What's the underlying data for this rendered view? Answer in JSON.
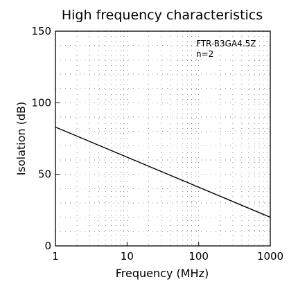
{
  "chart_data": {
    "type": "line",
    "title": "High frequency characteristics",
    "xlabel": "Frequency (MHz)",
    "ylabel": "Isolation (dB)",
    "x_scale": "log",
    "xlim": [
      1,
      1000
    ],
    "ylim": [
      0,
      150
    ],
    "x_ticks": [
      1,
      10,
      100,
      1000
    ],
    "y_ticks": [
      0,
      50,
      100,
      150
    ],
    "x_tick_labels": [
      "1",
      "10",
      "100",
      "1000"
    ],
    "y_tick_labels": [
      "0",
      "50",
      "100",
      "150"
    ],
    "grid": true,
    "annotations": [
      "FTR-B3GA4.5Z",
      "n=2"
    ],
    "series": [
      {
        "x": [
          1,
          1000
        ],
        "y": [
          83,
          20
        ]
      }
    ]
  }
}
